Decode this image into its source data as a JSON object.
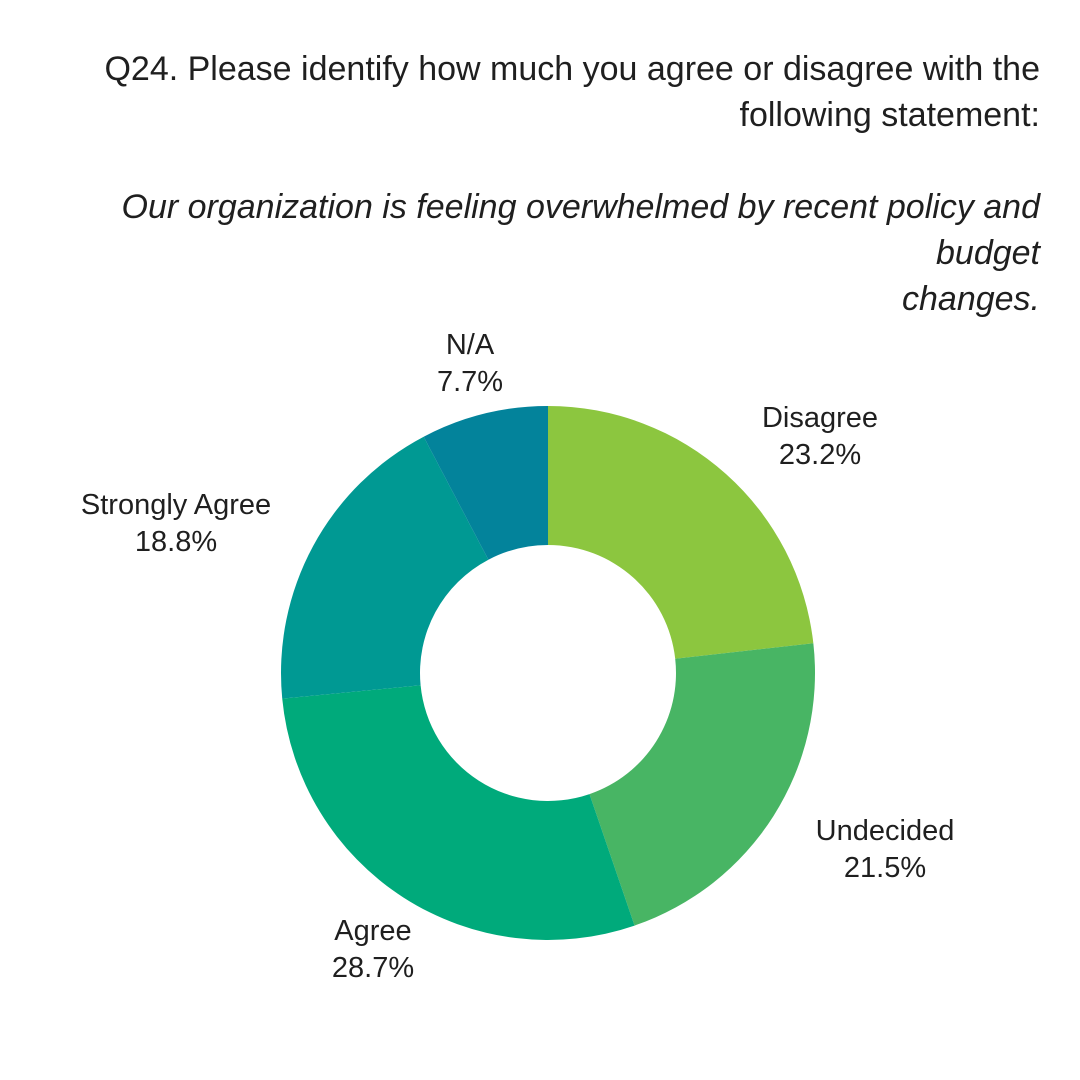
{
  "header": {
    "question_lines": [
      "Q24. Please identify how much you agree or disagree with the",
      "following statement:"
    ],
    "statement_lines": [
      "Our organization is feeling overwhelmed by recent policy and budget",
      "changes."
    ]
  },
  "chart_data": {
    "type": "pie",
    "variant": "donut",
    "title": "Q24. Please identify how much you agree or disagree with the following statement: Our organization is feeling overwhelmed by recent policy and budget changes.",
    "unit": "%",
    "categories": [
      "Disagree",
      "Undecided",
      "Agree",
      "Strongly Agree",
      "N/A"
    ],
    "values": [
      23.2,
      21.5,
      28.7,
      18.8,
      7.7
    ],
    "slices": [
      {
        "label": "Disagree",
        "value": 23.2,
        "value_label": "23.2%",
        "color": "#8CC63F"
      },
      {
        "label": "Undecided",
        "value": 21.5,
        "value_label": "21.5%",
        "color": "#48B564"
      },
      {
        "label": "Agree",
        "value": 28.7,
        "value_label": "28.7%",
        "color": "#00AA7B"
      },
      {
        "label": "Strongly Agree",
        "value": 18.8,
        "value_label": "18.8%",
        "color": "#009993"
      },
      {
        "label": "N/A",
        "value": 7.7,
        "value_label": "7.7%",
        "color": "#03839B"
      }
    ],
    "layout": {
      "start_angle": "top",
      "direction": "clockwise",
      "legend": "none",
      "labels": "outside",
      "grid": "off"
    }
  }
}
